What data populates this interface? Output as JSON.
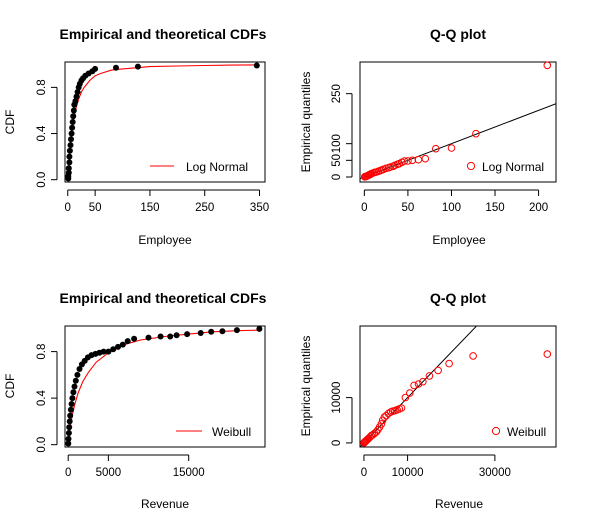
{
  "chart_data": [
    {
      "type": "line",
      "title": "Empirical and theoretical CDFs",
      "xlabel": "Employee",
      "ylabel": "CDF",
      "xlim": [
        -5,
        360
      ],
      "ylim": [
        -0.02,
        1.02
      ],
      "xticks": [
        0,
        50,
        150,
        250,
        350
      ],
      "yticks": [
        0.0,
        0.4,
        0.8
      ],
      "legend": {
        "label": "Log Normal",
        "color": "#ff0000",
        "position": "bottom-right"
      },
      "series": [
        {
          "kind": "empirical-points",
          "x": [
            1,
            1,
            2,
            2,
            3,
            3,
            4,
            5,
            6,
            7,
            8,
            9,
            10,
            11,
            12,
            14,
            16,
            18,
            20,
            22,
            25,
            28,
            32,
            38,
            45,
            50,
            88,
            128,
            345
          ],
          "y": [
            0.01,
            0.03,
            0.06,
            0.1,
            0.15,
            0.2,
            0.25,
            0.3,
            0.35,
            0.4,
            0.45,
            0.5,
            0.55,
            0.6,
            0.65,
            0.68,
            0.72,
            0.76,
            0.8,
            0.83,
            0.86,
            0.88,
            0.9,
            0.92,
            0.94,
            0.96,
            0.97,
            0.98,
            0.99
          ]
        },
        {
          "kind": "theoretical-curve",
          "x": [
            0.5,
            1,
            2,
            3,
            4,
            6,
            8,
            10,
            12,
            15,
            20,
            25,
            30,
            40,
            50,
            60,
            80,
            100,
            150,
            200,
            250,
            300,
            350
          ],
          "y": [
            0.01,
            0.05,
            0.12,
            0.2,
            0.26,
            0.36,
            0.44,
            0.5,
            0.55,
            0.62,
            0.7,
            0.76,
            0.8,
            0.86,
            0.9,
            0.92,
            0.95,
            0.96,
            0.98,
            0.985,
            0.99,
            0.993,
            0.995
          ]
        }
      ]
    },
    {
      "type": "scatter",
      "title": "Q-Q plot",
      "xlabel": "Employee",
      "ylabel": "Empirical quantiles",
      "xlim": [
        -5,
        220
      ],
      "ylim": [
        -15,
        345
      ],
      "xticks": [
        0,
        50,
        100,
        150,
        200
      ],
      "yticks": [
        0,
        50,
        100,
        250
      ],
      "legend": {
        "label": "Log Normal",
        "color": "#ff0000",
        "position": "bottom-right"
      },
      "reference_line": {
        "x": [
          -5,
          220
        ],
        "y": [
          -5,
          220
        ]
      },
      "points": {
        "x": [
          0.5,
          1,
          2,
          3,
          4,
          5,
          6,
          7,
          8,
          10,
          12,
          14,
          16,
          18,
          20,
          22,
          25,
          28,
          30,
          33,
          35,
          38,
          40,
          43,
          46,
          50,
          55,
          62,
          70,
          82,
          100,
          128,
          210
        ],
        "y": [
          0.5,
          1,
          2,
          3,
          4,
          6,
          7,
          8,
          10,
          12,
          14,
          15,
          17,
          19,
          21,
          23,
          26,
          28,
          30,
          32,
          35,
          38,
          40,
          44,
          48,
          48,
          50,
          52,
          55,
          85,
          87,
          130,
          335
        ]
      }
    },
    {
      "type": "line",
      "title": "Empirical and theoretical CDFs",
      "xlabel": "Revenue",
      "ylabel": "CDF",
      "xlim": [
        -400,
        24500
      ],
      "ylim": [
        -0.02,
        1.02
      ],
      "xticks": [
        0,
        5000,
        15000
      ],
      "yticks": [
        0.0,
        0.4,
        0.8
      ],
      "legend": {
        "label": "Weibull",
        "color": "#ff0000",
        "position": "bottom-right"
      },
      "series": [
        {
          "kind": "empirical-points",
          "x": [
            10,
            40,
            80,
            120,
            180,
            250,
            330,
            420,
            520,
            640,
            780,
            950,
            1150,
            1400,
            1700,
            2050,
            2450,
            2900,
            3400,
            3900,
            4400,
            5000,
            5600,
            6200,
            6800,
            7400,
            8200,
            10000,
            11500,
            12700,
            13500,
            14800,
            16500,
            17800,
            19200,
            21000,
            23800
          ],
          "y": [
            0.01,
            0.05,
            0.1,
            0.15,
            0.2,
            0.25,
            0.3,
            0.35,
            0.4,
            0.45,
            0.5,
            0.55,
            0.6,
            0.65,
            0.69,
            0.72,
            0.75,
            0.77,
            0.78,
            0.79,
            0.8,
            0.8,
            0.82,
            0.84,
            0.86,
            0.89,
            0.91,
            0.92,
            0.93,
            0.93,
            0.94,
            0.95,
            0.96,
            0.97,
            0.975,
            0.985,
            0.995
          ]
        },
        {
          "kind": "theoretical-curve",
          "x": [
            0,
            50,
            150,
            300,
            500,
            800,
            1200,
            1800,
            2500,
            3500,
            5000,
            7000,
            9000,
            12000,
            15000,
            18000,
            21000,
            24000
          ],
          "y": [
            0.0,
            0.04,
            0.1,
            0.17,
            0.25,
            0.34,
            0.44,
            0.54,
            0.62,
            0.71,
            0.79,
            0.86,
            0.9,
            0.93,
            0.95,
            0.97,
            0.98,
            0.985
          ]
        }
      ]
    },
    {
      "type": "scatter",
      "title": "Q-Q plot",
      "xlabel": "Revenue",
      "ylabel": "Empirical quantiles",
      "xlim": [
        -900,
        44000
      ],
      "ylim": [
        -900,
        25800
      ],
      "xticks": [
        0,
        10000,
        30000
      ],
      "yticks": [
        0,
        10000
      ],
      "legend": {
        "label": "Weibull",
        "color": "#ff0000",
        "position": "bottom-right"
      },
      "reference_line": {
        "x": [
          -900,
          26000
        ],
        "y": [
          -900,
          26000
        ]
      },
      "points": {
        "x": [
          20,
          80,
          150,
          300,
          450,
          650,
          850,
          1100,
          1400,
          1700,
          2000,
          2400,
          2800,
          3200,
          3600,
          4000,
          4300,
          4700,
          5100,
          5600,
          6100,
          6600,
          7100,
          7600,
          8100,
          8600,
          9500,
          10500,
          11500,
          12500,
          13500,
          15000,
          17000,
          19500,
          25000,
          42000
        ],
        "y": [
          20,
          80,
          150,
          300,
          450,
          600,
          800,
          1000,
          1300,
          1600,
          1800,
          2100,
          2400,
          2900,
          3500,
          4200,
          5000,
          5700,
          6000,
          6500,
          6800,
          7000,
          7100,
          7300,
          7500,
          7700,
          10000,
          11000,
          12700,
          13000,
          13500,
          14800,
          16000,
          17500,
          19200,
          19600
        ]
      }
    }
  ]
}
